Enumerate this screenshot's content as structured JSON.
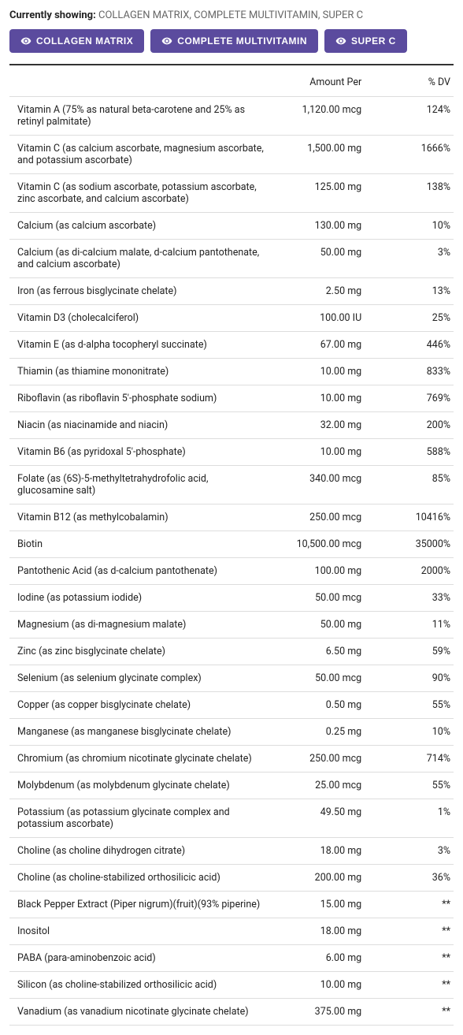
{
  "header": {
    "currently_showing_label": "Currently showing:",
    "currently_showing_value": "COLLAGEN MATRIX, COMPLETE MULTIVITAMIN, SUPER C"
  },
  "filters": [
    {
      "label": "COLLAGEN MATRIX"
    },
    {
      "label": "COMPLETE MULTIVITAMIN"
    },
    {
      "label": "SUPER C"
    }
  ],
  "table": {
    "columns": {
      "amount": "Amount Per",
      "dv": "% DV"
    },
    "rows": [
      {
        "name": "Vitamin A (75% as natural beta-carotene and 25% as retinyl palmitate)",
        "amount": "1,120.00 mcg",
        "dv": "124%"
      },
      {
        "name": "Vitamin C (as calcium ascorbate, magnesium ascorbate, and potassium ascorbate)",
        "amount": "1,500.00 mg",
        "dv": "1666%"
      },
      {
        "name": "Vitamin C (as sodium ascorbate, potassium ascorbate, zinc ascorbate, and calcium ascorbate)",
        "amount": "125.00 mg",
        "dv": "138%"
      },
      {
        "name": "Calcium (as calcium ascorbate)",
        "amount": "130.00 mg",
        "dv": "10%"
      },
      {
        "name": "Calcium (as di-calcium malate, d-calcium pantothenate, and calcium ascorbate)",
        "amount": "50.00 mg",
        "dv": "3%"
      },
      {
        "name": "Iron (as ferrous bisglycinate chelate)",
        "amount": "2.50 mg",
        "dv": "13%"
      },
      {
        "name": "Vitamin D3 (cholecalciferol)",
        "amount": "100.00 IU",
        "dv": "25%"
      },
      {
        "name": "Vitamin E (as d-alpha tocopheryl succinate)",
        "amount": "67.00 mg",
        "dv": "446%"
      },
      {
        "name": "Thiamin (as thiamine mononitrate)",
        "amount": "10.00 mg",
        "dv": "833%"
      },
      {
        "name": "Riboflavin (as riboflavin 5'-phosphate sodium)",
        "amount": "10.00 mg",
        "dv": "769%"
      },
      {
        "name": "Niacin (as niacinamide and niacin)",
        "amount": "32.00 mg",
        "dv": "200%"
      },
      {
        "name": "Vitamin B6 (as pyridoxal 5'-phosphate)",
        "amount": "10.00 mg",
        "dv": "588%"
      },
      {
        "name": "Folate (as (6S)-5-methyltetrahydrofolic acid, glucosamine salt)",
        "amount": "340.00 mcg",
        "dv": "85%"
      },
      {
        "name": "Vitamin B12 (as methylcobalamin)",
        "amount": "250.00 mcg",
        "dv": "10416%"
      },
      {
        "name": "Biotin",
        "amount": "10,500.00 mcg",
        "dv": "35000%"
      },
      {
        "name": "Pantothenic Acid (as d-calcium pantothenate)",
        "amount": "100.00 mg",
        "dv": "2000%"
      },
      {
        "name": "Iodine (as potassium iodide)",
        "amount": "50.00 mcg",
        "dv": "33%"
      },
      {
        "name": "Magnesium (as di-magnesium malate)",
        "amount": "50.00 mg",
        "dv": "11%"
      },
      {
        "name": "Zinc (as zinc bisglycinate chelate)",
        "amount": "6.50 mg",
        "dv": "59%"
      },
      {
        "name": "Selenium (as selenium glycinate complex)",
        "amount": "50.00 mcg",
        "dv": "90%"
      },
      {
        "name": "Copper (as copper bisglycinate chelate)",
        "amount": "0.50 mg",
        "dv": "55%"
      },
      {
        "name": "Manganese (as manganese bisglycinate chelate)",
        "amount": "0.25 mg",
        "dv": "10%"
      },
      {
        "name": "Chromium (as chromium nicotinate glycinate chelate)",
        "amount": "250.00 mcg",
        "dv": "714%"
      },
      {
        "name": "Molybdenum (as molybdenum glycinate chelate)",
        "amount": "25.00 mcg",
        "dv": "55%"
      },
      {
        "name": "Potassium (as potassium glycinate complex and potassium ascorbate)",
        "amount": "49.50 mg",
        "dv": "1%"
      },
      {
        "name": "Choline (as choline dihydrogen citrate)",
        "amount": "18.00 mg",
        "dv": "3%"
      },
      {
        "name": "Choline (as choline-stabilized orthosilicic acid)",
        "amount": "200.00 mg",
        "dv": "36%"
      },
      {
        "name": "Black Pepper Extract (Piper nigrum)(fruit)(93% piperine)",
        "amount": "15.00 mg",
        "dv": "**"
      },
      {
        "name": "Inositol",
        "amount": "18.00 mg",
        "dv": "**"
      },
      {
        "name": "PABA (para-aminobenzoic acid)",
        "amount": "6.00 mg",
        "dv": "**"
      },
      {
        "name": "Silicon (as choline-stabilized orthosilicic acid)",
        "amount": "10.00 mg",
        "dv": "**"
      },
      {
        "name": "Vanadium (as vanadium nicotinate glycinate chelate)",
        "amount": "375.00 mg",
        "dv": "**"
      }
    ]
  },
  "colors": {
    "button_bg": "#5b4b9e",
    "border": "#dddddd",
    "text": "#222222"
  }
}
